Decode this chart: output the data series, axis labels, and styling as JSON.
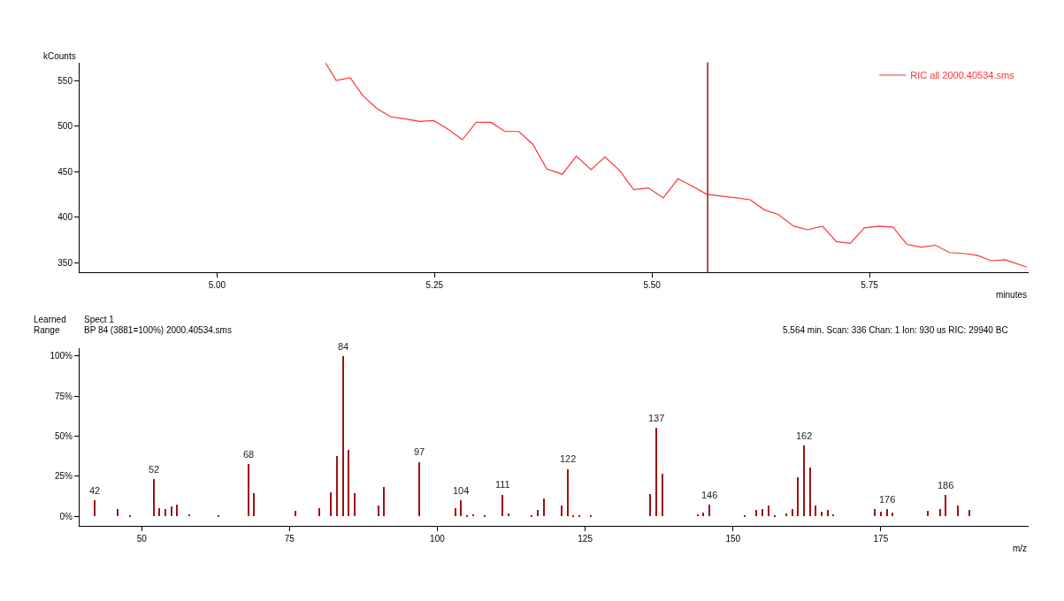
{
  "chart_data": [
    {
      "type": "line",
      "xlabel": "minutes",
      "ylabel": "kCounts",
      "xlim": [
        4.842,
        5.933
      ],
      "ylim": [
        339,
        570
      ],
      "xticks": [
        {
          "value": 5,
          "label": "5.00"
        },
        {
          "value": 5.25,
          "label": "5.25"
        },
        {
          "value": 5.5,
          "label": "5.50"
        },
        {
          "value": 5.75,
          "label": "5.75"
        }
      ],
      "yticks": [
        350,
        400,
        450,
        500,
        550
      ],
      "legend": "top right",
      "marker": "none",
      "line_style": "solid",
      "ref_lines": [
        {
          "axis": "x",
          "value": 5.564,
          "color": "#8b1a1a",
          "line_style": "solid"
        }
      ],
      "series": [
        {
          "name": "RIC all 2000.40534.sms",
          "color": "#ff3333",
          "x": [
            5.125,
            5.137,
            5.153,
            5.168,
            5.184,
            5.2,
            5.216,
            5.233,
            5.249,
            5.265,
            5.282,
            5.298,
            5.315,
            5.331,
            5.347,
            5.363,
            5.379,
            5.397,
            5.413,
            5.43,
            5.446,
            5.463,
            5.479,
            5.496,
            5.513,
            5.53,
            5.546,
            5.563,
            5.58,
            5.597,
            5.613,
            5.629,
            5.645,
            5.663,
            5.679,
            5.696,
            5.712,
            5.728,
            5.744,
            5.761,
            5.777,
            5.793,
            5.81,
            5.826,
            5.842,
            5.858,
            5.874,
            5.89,
            5.906,
            5.931
          ],
          "values": [
            569,
            550,
            553,
            533,
            519,
            510,
            508,
            505,
            506,
            497,
            485,
            504,
            504,
            494,
            494,
            480,
            453,
            447,
            467,
            452,
            466,
            451,
            430,
            432,
            421,
            442,
            434,
            425,
            423,
            421,
            419,
            408,
            403,
            390,
            386,
            390,
            373,
            371,
            388,
            390,
            389,
            370,
            367,
            369,
            361,
            360,
            358,
            352,
            353,
            345
          ]
        }
      ]
    },
    {
      "type": "bar",
      "xlabel": "m/z",
      "xlim": [
        39.5,
        200
      ],
      "ylim": [
        -6,
        105
      ],
      "xticks": [
        50,
        75,
        100,
        125,
        150,
        175
      ],
      "yticks": [
        {
          "value": 0,
          "label": "0%"
        },
        {
          "value": 25,
          "label": "25%"
        },
        {
          "value": 50,
          "label": "50%"
        },
        {
          "value": 75,
          "label": "75%"
        },
        {
          "value": 100,
          "label": "100%"
        }
      ],
      "legend": false,
      "annotations": [
        "Learned",
        "Range",
        "Spect 1",
        "BP 84 (3881=100%) 2000.40534.sms",
        "5.564 min. Scan: 336 Chan: 1 Ion: 930 us RIC: 29940 BC",
        {
          "text": "42",
          "x": 42,
          "y": 10.1
        },
        {
          "text": "52",
          "x": 52,
          "y": 23.4
        },
        {
          "text": "68",
          "x": 68,
          "y": 32.9
        },
        {
          "text": "84",
          "x": 84,
          "y": 100
        },
        {
          "text": "97",
          "x": 97,
          "y": 34.1
        },
        {
          "text": "104",
          "x": 104,
          "y": 10.1
        },
        {
          "text": "111",
          "x": 111,
          "y": 13.7
        },
        {
          "text": "122",
          "x": 122,
          "y": 29.7
        },
        {
          "text": "137",
          "x": 137,
          "y": 55.3
        },
        {
          "text": "146",
          "x": 146,
          "y": 7.4
        },
        {
          "text": "162",
          "x": 162,
          "y": 44.4
        },
        {
          "text": "176",
          "x": 176,
          "y": 4.7
        },
        {
          "text": "186",
          "x": 186,
          "y": 13.3
        }
      ],
      "series": [
        {
          "color": "#a01010",
          "x": [
            42,
            46,
            48,
            52,
            53,
            54,
            55,
            56,
            58,
            63,
            68,
            69,
            76,
            80,
            82,
            83,
            84,
            85,
            86,
            90,
            91,
            97,
            103,
            104,
            105,
            106,
            108,
            111,
            112,
            116,
            117,
            118,
            121,
            122,
            123,
            124,
            126,
            136,
            137,
            138,
            144,
            145,
            146,
            152,
            154,
            155,
            156,
            157,
            159,
            160,
            161,
            162,
            163,
            164,
            165,
            166,
            167,
            174,
            175,
            176,
            177,
            183,
            185,
            186,
            188,
            190
          ],
          "values": [
            10.1,
            4.7,
            0.7,
            23.4,
            5.2,
            4.7,
            6.2,
            7.6,
            1.2,
            0.3,
            32.9,
            14.7,
            3.5,
            5.2,
            15,
            37.8,
            100,
            41.8,
            14.7,
            6.6,
            18.7,
            34.1,
            5.2,
            10.1,
            0.3,
            1.2,
            0.8,
            13.7,
            1.7,
            0.8,
            4,
            11.5,
            6.6,
            29.7,
            0.8,
            0.5,
            0.5,
            13.8,
            55.3,
            26.5,
            1.2,
            2.2,
            7.4,
            0.5,
            4,
            4.7,
            7.1,
            0.5,
            1.7,
            4.7,
            24.5,
            44.4,
            30.5,
            7.1,
            3,
            4,
            1.2,
            4.4,
            3,
            4.7,
            2.7,
            3.5,
            4.7,
            13.3,
            7.1,
            4
          ]
        }
      ]
    }
  ]
}
